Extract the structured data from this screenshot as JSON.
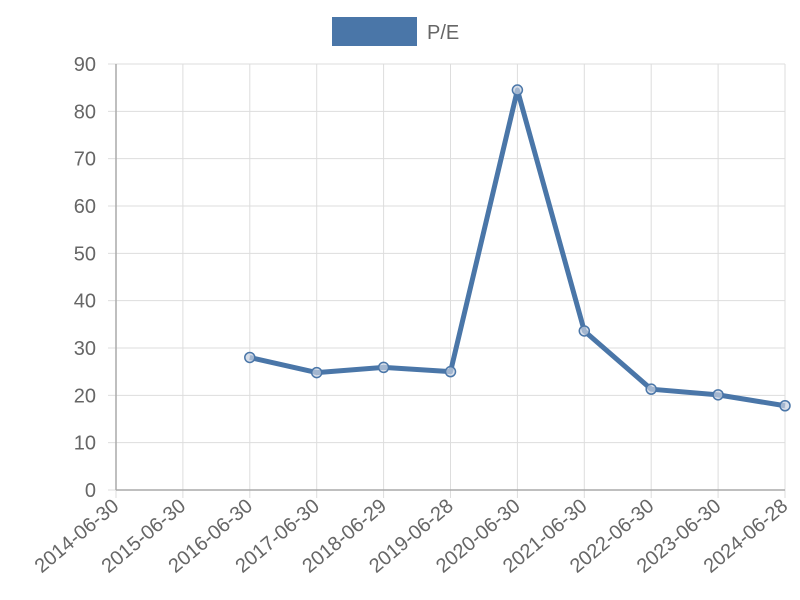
{
  "chart_data": {
    "type": "line",
    "categories": [
      "2014-06-30",
      "2015-06-30",
      "2016-06-30",
      "2017-06-30",
      "2018-06-29",
      "2019-06-28",
      "2020-06-30",
      "2021-06-30",
      "2022-06-30",
      "2023-06-30",
      "2024-06-28"
    ],
    "series": [
      {
        "name": "P/E",
        "color": "#4a76a8",
        "values": [
          null,
          null,
          28,
          24.8,
          25.9,
          25,
          84.5,
          33.6,
          21.3,
          20.1,
          17.8
        ]
      }
    ],
    "ylim": [
      0,
      90
    ],
    "yticks": [
      0,
      10,
      20,
      30,
      40,
      50,
      60,
      70,
      80,
      90
    ],
    "grid": true,
    "legend": "top"
  }
}
